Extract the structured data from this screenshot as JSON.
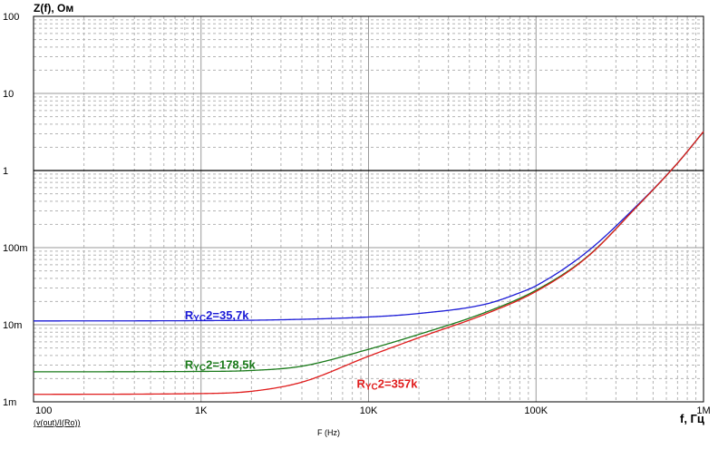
{
  "chart_data": {
    "type": "line",
    "title": "Z(f), Ом",
    "xlabel": "f, Гц",
    "x_axis_caption": "F (Hz)",
    "trace_expression": "(v(out)/I(Ro))",
    "x_scale": "log",
    "y_scale": "log",
    "xlim": [
      100,
      1000000
    ],
    "ylim": [
      0.001,
      100
    ],
    "grid": true,
    "x_ticks": [
      {
        "value": 100,
        "label": "100"
      },
      {
        "value": 1000,
        "label": "1K"
      },
      {
        "value": 10000,
        "label": "10K"
      },
      {
        "value": 100000,
        "label": "100K"
      },
      {
        "value": 1000000,
        "label": "1M"
      }
    ],
    "y_ticks": [
      {
        "value": 0.001,
        "label": "1m"
      },
      {
        "value": 0.01,
        "label": "10m"
      },
      {
        "value": 0.1,
        "label": "100m"
      },
      {
        "value": 1,
        "label": "1"
      },
      {
        "value": 10,
        "label": "10"
      },
      {
        "value": 100,
        "label": "100"
      }
    ],
    "reference_line": {
      "y": 1,
      "color": "#000000"
    },
    "series": [
      {
        "name": "RYC2=35,7k",
        "label_main": "R",
        "label_sub": "YC",
        "label_rest": "2=35,7k",
        "label_at": {
          "x": 800,
          "y": 0.0118
        },
        "color": "#1a1ad6",
        "points": [
          [
            100,
            0.0112
          ],
          [
            1000,
            0.0113
          ],
          [
            3000,
            0.0116
          ],
          [
            10000,
            0.0126
          ],
          [
            20000,
            0.014
          ],
          [
            50000,
            0.0185
          ],
          [
            80000,
            0.026
          ],
          [
            100000,
            0.032
          ],
          [
            200000,
            0.087
          ],
          [
            400000,
            0.35
          ],
          [
            700000,
            1.25
          ],
          [
            1000000,
            3.2
          ]
        ]
      },
      {
        "name": "RYC2=178,5k",
        "label_main": "R",
        "label_sub": "YC",
        "label_rest": "2=178,5k",
        "label_at": {
          "x": 800,
          "y": 0.0027
        },
        "color": "#1a7a1a",
        "points": [
          [
            100,
            0.00245
          ],
          [
            1000,
            0.00248
          ],
          [
            2000,
            0.00255
          ],
          [
            4000,
            0.0029
          ],
          [
            10000,
            0.0048
          ],
          [
            20000,
            0.0075
          ],
          [
            50000,
            0.0145
          ],
          [
            100000,
            0.028
          ],
          [
            200000,
            0.075
          ],
          [
            400000,
            0.34
          ],
          [
            700000,
            1.25
          ],
          [
            1000000,
            3.2
          ]
        ]
      },
      {
        "name": "RYC2=357k",
        "label_main": "R",
        "label_sub": "YC",
        "label_rest": "2=357k",
        "label_at": {
          "x": 8500,
          "y": 0.00152
        },
        "color": "#e01c1c",
        "points": [
          [
            100,
            0.00125
          ],
          [
            1000,
            0.00128
          ],
          [
            2000,
            0.00137
          ],
          [
            4000,
            0.0018
          ],
          [
            10000,
            0.0039
          ],
          [
            20000,
            0.0068
          ],
          [
            50000,
            0.0138
          ],
          [
            100000,
            0.027
          ],
          [
            200000,
            0.074
          ],
          [
            400000,
            0.34
          ],
          [
            700000,
            1.25
          ],
          [
            1000000,
            3.2
          ]
        ]
      }
    ]
  }
}
